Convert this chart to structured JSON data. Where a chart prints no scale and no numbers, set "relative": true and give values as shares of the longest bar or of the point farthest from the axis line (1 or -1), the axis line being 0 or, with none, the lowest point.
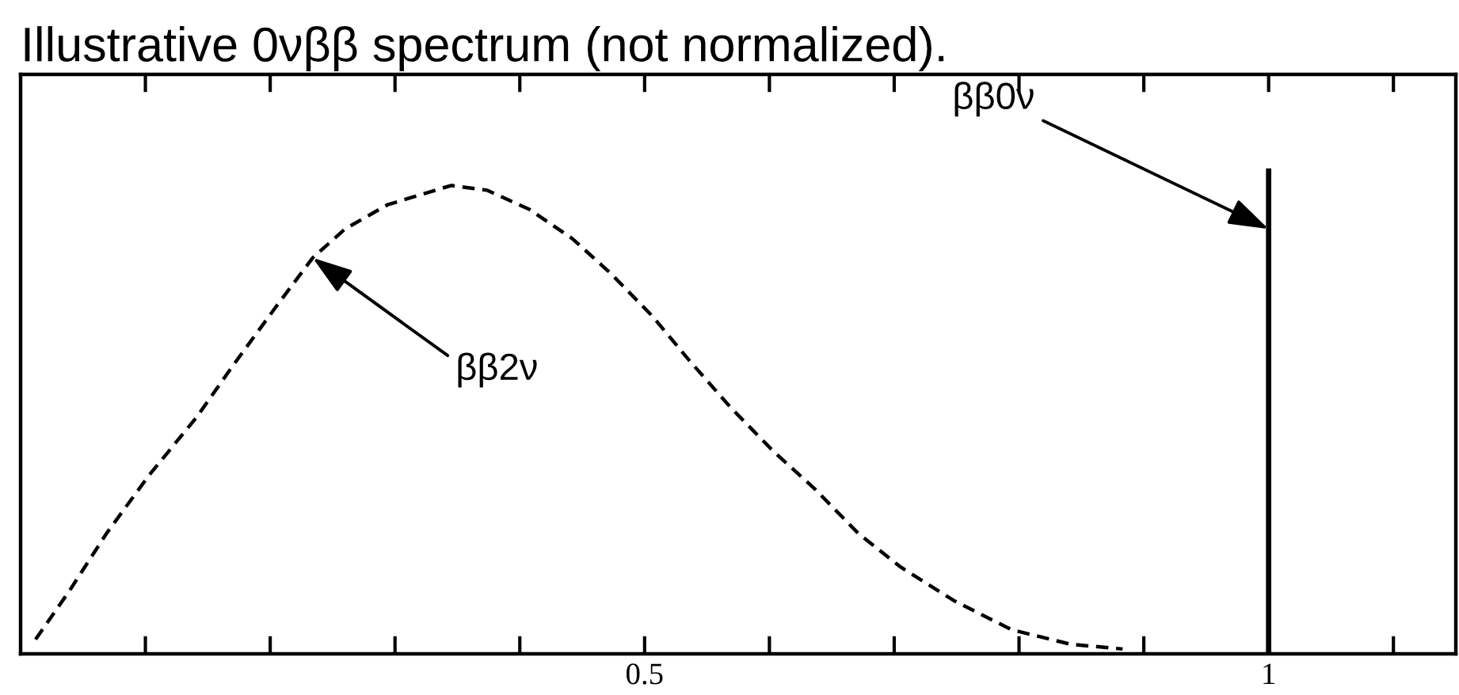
{
  "chart_data": {
    "type": "line",
    "title": "Illustrative 0νββ spectrum (not normalized).",
    "relative": true,
    "tick_labels": "x",
    "xlim": [
      0,
      1.15
    ],
    "xticks": [
      {
        "value": 0.1,
        "label": null
      },
      {
        "value": 0.2,
        "label": null
      },
      {
        "value": 0.3,
        "label": null
      },
      {
        "value": 0.4,
        "label": null
      },
      0.5,
      {
        "value": 0.6,
        "label": null
      },
      {
        "value": 0.7,
        "label": null
      },
      {
        "value": 0.8,
        "label": null
      },
      {
        "value": 0.9,
        "label": null
      },
      1,
      {
        "value": 1.1,
        "label": null
      }
    ],
    "series": [
      {
        "color": "#000000",
        "line_style": "dashed",
        "x": [
          0.012,
          0.039,
          0.069,
          0.103,
          0.141,
          0.171,
          0.205,
          0.234,
          0.26,
          0.294,
          0.345,
          0.374,
          0.408,
          0.442,
          0.472,
          0.506,
          0.535,
          0.569,
          0.603,
          0.637,
          0.671,
          0.705,
          0.748,
          0.794,
          0.841,
          0.883
        ],
        "values": [
          0.03,
          0.13,
          0.25,
          0.37,
          0.49,
          0.6,
          0.72,
          0.82,
          0.88,
          0.93,
          0.97,
          0.96,
          0.92,
          0.86,
          0.79,
          0.7,
          0.61,
          0.51,
          0.42,
          0.34,
          0.25,
          0.18,
          0.11,
          0.05,
          0.02,
          0.01
        ]
      },
      {
        "color": "#000000",
        "line_style": "solid",
        "x": [
          1,
          1,
          1
        ],
        "values": [
          0,
          0.88,
          1
        ]
      }
    ],
    "annotations": [
      {
        "text": "ββ2ν",
        "x": 0.234,
        "y": 0.82
      },
      {
        "text": "ββ0ν",
        "x": 1,
        "y": 0.88
      }
    ]
  }
}
